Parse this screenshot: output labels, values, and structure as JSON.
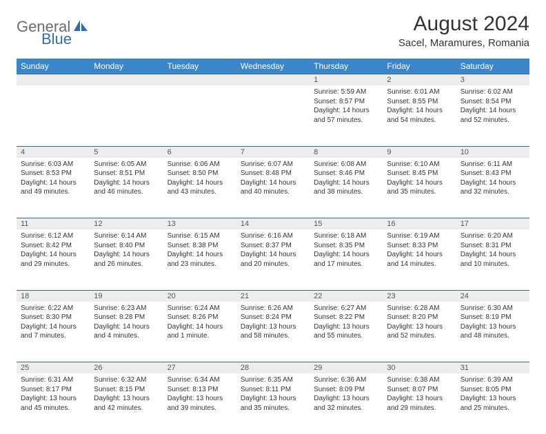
{
  "brand": {
    "name_a": "General",
    "name_b": "Blue"
  },
  "title": "August 2024",
  "location": "Sacel, Maramures, Romania",
  "colors": {
    "header_bg": "#3a86c8",
    "header_text": "#ffffff",
    "daynum_bg": "#ededed",
    "row_border": "#3a6a9a",
    "body_text": "#333333",
    "brand_gray": "#6b6b6b",
    "brand_blue": "#2f6fa8"
  },
  "day_headers": [
    "Sunday",
    "Monday",
    "Tuesday",
    "Wednesday",
    "Thursday",
    "Friday",
    "Saturday"
  ],
  "weeks": [
    [
      null,
      null,
      null,
      null,
      {
        "n": "1",
        "sr": "Sunrise: 5:59 AM",
        "ss": "Sunset: 8:57 PM",
        "d1": "Daylight: 14 hours",
        "d2": "and 57 minutes."
      },
      {
        "n": "2",
        "sr": "Sunrise: 6:01 AM",
        "ss": "Sunset: 8:55 PM",
        "d1": "Daylight: 14 hours",
        "d2": "and 54 minutes."
      },
      {
        "n": "3",
        "sr": "Sunrise: 6:02 AM",
        "ss": "Sunset: 8:54 PM",
        "d1": "Daylight: 14 hours",
        "d2": "and 52 minutes."
      }
    ],
    [
      {
        "n": "4",
        "sr": "Sunrise: 6:03 AM",
        "ss": "Sunset: 8:53 PM",
        "d1": "Daylight: 14 hours",
        "d2": "and 49 minutes."
      },
      {
        "n": "5",
        "sr": "Sunrise: 6:05 AM",
        "ss": "Sunset: 8:51 PM",
        "d1": "Daylight: 14 hours",
        "d2": "and 46 minutes."
      },
      {
        "n": "6",
        "sr": "Sunrise: 6:06 AM",
        "ss": "Sunset: 8:50 PM",
        "d1": "Daylight: 14 hours",
        "d2": "and 43 minutes."
      },
      {
        "n": "7",
        "sr": "Sunrise: 6:07 AM",
        "ss": "Sunset: 8:48 PM",
        "d1": "Daylight: 14 hours",
        "d2": "and 40 minutes."
      },
      {
        "n": "8",
        "sr": "Sunrise: 6:08 AM",
        "ss": "Sunset: 8:46 PM",
        "d1": "Daylight: 14 hours",
        "d2": "and 38 minutes."
      },
      {
        "n": "9",
        "sr": "Sunrise: 6:10 AM",
        "ss": "Sunset: 8:45 PM",
        "d1": "Daylight: 14 hours",
        "d2": "and 35 minutes."
      },
      {
        "n": "10",
        "sr": "Sunrise: 6:11 AM",
        "ss": "Sunset: 8:43 PM",
        "d1": "Daylight: 14 hours",
        "d2": "and 32 minutes."
      }
    ],
    [
      {
        "n": "11",
        "sr": "Sunrise: 6:12 AM",
        "ss": "Sunset: 8:42 PM",
        "d1": "Daylight: 14 hours",
        "d2": "and 29 minutes."
      },
      {
        "n": "12",
        "sr": "Sunrise: 6:14 AM",
        "ss": "Sunset: 8:40 PM",
        "d1": "Daylight: 14 hours",
        "d2": "and 26 minutes."
      },
      {
        "n": "13",
        "sr": "Sunrise: 6:15 AM",
        "ss": "Sunset: 8:38 PM",
        "d1": "Daylight: 14 hours",
        "d2": "and 23 minutes."
      },
      {
        "n": "14",
        "sr": "Sunrise: 6:16 AM",
        "ss": "Sunset: 8:37 PM",
        "d1": "Daylight: 14 hours",
        "d2": "and 20 minutes."
      },
      {
        "n": "15",
        "sr": "Sunrise: 6:18 AM",
        "ss": "Sunset: 8:35 PM",
        "d1": "Daylight: 14 hours",
        "d2": "and 17 minutes."
      },
      {
        "n": "16",
        "sr": "Sunrise: 6:19 AM",
        "ss": "Sunset: 8:33 PM",
        "d1": "Daylight: 14 hours",
        "d2": "and 14 minutes."
      },
      {
        "n": "17",
        "sr": "Sunrise: 6:20 AM",
        "ss": "Sunset: 8:31 PM",
        "d1": "Daylight: 14 hours",
        "d2": "and 10 minutes."
      }
    ],
    [
      {
        "n": "18",
        "sr": "Sunrise: 6:22 AM",
        "ss": "Sunset: 8:30 PM",
        "d1": "Daylight: 14 hours",
        "d2": "and 7 minutes."
      },
      {
        "n": "19",
        "sr": "Sunrise: 6:23 AM",
        "ss": "Sunset: 8:28 PM",
        "d1": "Daylight: 14 hours",
        "d2": "and 4 minutes."
      },
      {
        "n": "20",
        "sr": "Sunrise: 6:24 AM",
        "ss": "Sunset: 8:26 PM",
        "d1": "Daylight: 14 hours",
        "d2": "and 1 minute."
      },
      {
        "n": "21",
        "sr": "Sunrise: 6:26 AM",
        "ss": "Sunset: 8:24 PM",
        "d1": "Daylight: 13 hours",
        "d2": "and 58 minutes."
      },
      {
        "n": "22",
        "sr": "Sunrise: 6:27 AM",
        "ss": "Sunset: 8:22 PM",
        "d1": "Daylight: 13 hours",
        "d2": "and 55 minutes."
      },
      {
        "n": "23",
        "sr": "Sunrise: 6:28 AM",
        "ss": "Sunset: 8:20 PM",
        "d1": "Daylight: 13 hours",
        "d2": "and 52 minutes."
      },
      {
        "n": "24",
        "sr": "Sunrise: 6:30 AM",
        "ss": "Sunset: 8:19 PM",
        "d1": "Daylight: 13 hours",
        "d2": "and 48 minutes."
      }
    ],
    [
      {
        "n": "25",
        "sr": "Sunrise: 6:31 AM",
        "ss": "Sunset: 8:17 PM",
        "d1": "Daylight: 13 hours",
        "d2": "and 45 minutes."
      },
      {
        "n": "26",
        "sr": "Sunrise: 6:32 AM",
        "ss": "Sunset: 8:15 PM",
        "d1": "Daylight: 13 hours",
        "d2": "and 42 minutes."
      },
      {
        "n": "27",
        "sr": "Sunrise: 6:34 AM",
        "ss": "Sunset: 8:13 PM",
        "d1": "Daylight: 13 hours",
        "d2": "and 39 minutes."
      },
      {
        "n": "28",
        "sr": "Sunrise: 6:35 AM",
        "ss": "Sunset: 8:11 PM",
        "d1": "Daylight: 13 hours",
        "d2": "and 35 minutes."
      },
      {
        "n": "29",
        "sr": "Sunrise: 6:36 AM",
        "ss": "Sunset: 8:09 PM",
        "d1": "Daylight: 13 hours",
        "d2": "and 32 minutes."
      },
      {
        "n": "30",
        "sr": "Sunrise: 6:38 AM",
        "ss": "Sunset: 8:07 PM",
        "d1": "Daylight: 13 hours",
        "d2": "and 29 minutes."
      },
      {
        "n": "31",
        "sr": "Sunrise: 6:39 AM",
        "ss": "Sunset: 8:05 PM",
        "d1": "Daylight: 13 hours",
        "d2": "and 25 minutes."
      }
    ]
  ]
}
